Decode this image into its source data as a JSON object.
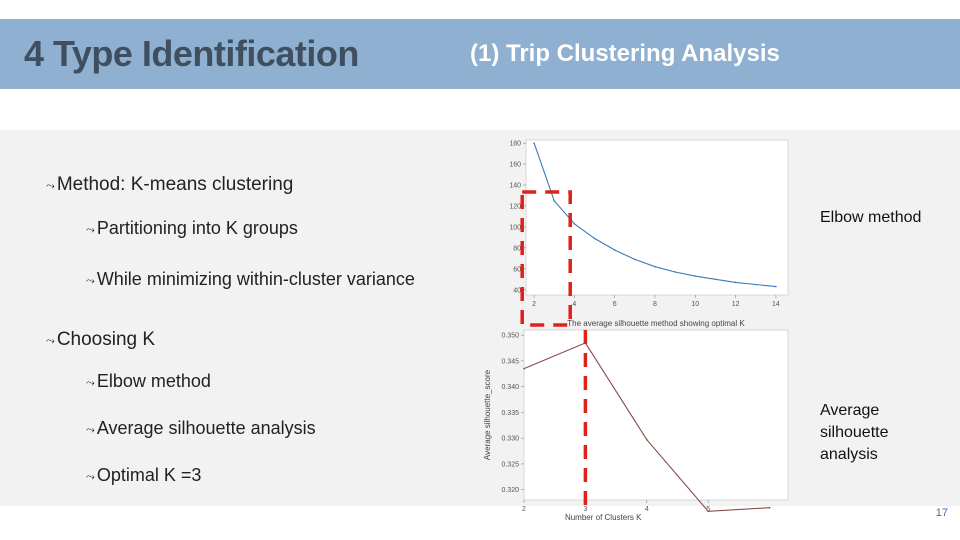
{
  "header": {
    "title": "4 Type Identification",
    "subtitle": "(1) Trip Clustering Analysis"
  },
  "bullets": {
    "method": "Method: K-means clustering",
    "partition": "Partitioning into K groups",
    "variance": "While minimizing within-cluster variance",
    "choosing": "Choosing K",
    "elbow": "Elbow method",
    "silhouette": "Average silhouette analysis",
    "optimal": "Optimal K =3"
  },
  "notes": {
    "elbow": "Elbow method",
    "silhouette": "Average silhouette analysis"
  },
  "page_number": "17",
  "colors": {
    "elbow_line": "#3b7ab8",
    "silhouette_line": "#8a4a4a",
    "highlight": "#e0201b"
  },
  "chart_data": [
    {
      "type": "line",
      "x": [
        2,
        3,
        4,
        5,
        6,
        7,
        8,
        9,
        10,
        11,
        12,
        13,
        14
      ],
      "series": [
        {
          "values": [
            180,
            125,
            103,
            89,
            78,
            69,
            62,
            57,
            53,
            50,
            47,
            45,
            43
          ]
        }
      ],
      "xticks": [
        "2",
        "4",
        "6",
        "8",
        "10",
        "12",
        "14"
      ],
      "yticks": [
        "40",
        "60",
        "80",
        "100",
        "120",
        "140",
        "160",
        "180"
      ],
      "xlim": [
        1.6,
        14.6
      ],
      "ylim": [
        35,
        183
      ],
      "grid": false,
      "highlight_x": 3
    },
    {
      "type": "line",
      "title": "The average silhouette method showing optimal K",
      "xlabel": "Number of Clusters K",
      "ylabel": "Average silhouette_score",
      "x": [
        2,
        3,
        4,
        5,
        6
      ],
      "series": [
        {
          "values": [
            0.3435,
            0.3485,
            0.3297,
            0.3158,
            0.3165
          ]
        }
      ],
      "xticks": [
        "2",
        "3",
        "4",
        "5"
      ],
      "yticks": [
        "0.320",
        "0.325",
        "0.330",
        "0.335",
        "0.340",
        "0.345",
        "0.350"
      ],
      "xlim": [
        2,
        6.3
      ],
      "ylim": [
        0.318,
        0.351
      ],
      "grid": false,
      "highlight_x": 3
    }
  ]
}
